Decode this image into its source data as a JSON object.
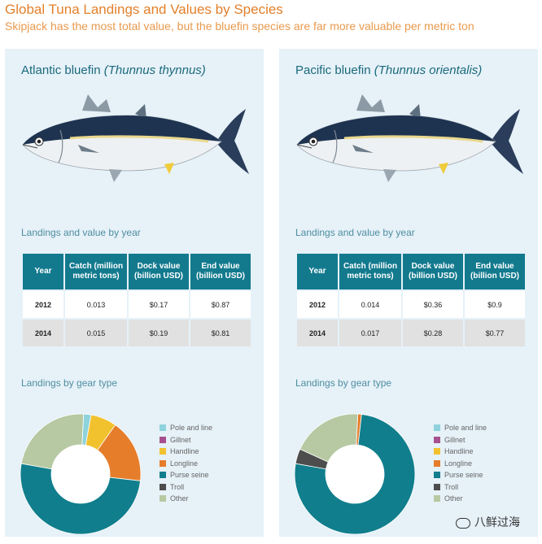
{
  "title": "Global Tuna Landings and Values by Species",
  "subtitle": "Skipjack has the most total value, but the bluefin species are far more valuable per metric ton",
  "section_landings_value": "Landings and value by year",
  "section_gear": "Landings by gear type",
  "panels": [
    {
      "species_common": "Atlantic bluefin ",
      "species_latin": "(Thunnus thynnus)",
      "table": {
        "headers": [
          "Year",
          "Catch (million metric tons)",
          "Dock value (billion USD)",
          "End value (billion USD)"
        ],
        "rows": [
          {
            "year": "2012",
            "catch": "0.013",
            "dock": "$0.17",
            "end": "$0.87"
          },
          {
            "year": "2014",
            "catch": "0.015",
            "dock": "$0.19",
            "end": "$0.81"
          }
        ]
      }
    },
    {
      "species_common": "Pacific bluefin ",
      "species_latin": "(Thunnus orientalis)",
      "table": {
        "headers": [
          "Year",
          "Catch (million metric tons)",
          "Dock value (billion USD)",
          "End value (billion USD)"
        ],
        "rows": [
          {
            "year": "2012",
            "catch": "0.014",
            "dock": "$0.36",
            "end": "$0.9"
          },
          {
            "year": "2014",
            "catch": "0.017",
            "dock": "$0.28",
            "end": "$0.77"
          }
        ]
      }
    }
  ],
  "legend": [
    {
      "label": "Pole and line",
      "color": "#8ed3dc"
    },
    {
      "label": "Gillnet",
      "color": "#a8508f"
    },
    {
      "label": "Handline",
      "color": "#f2c12e"
    },
    {
      "label": "Longline",
      "color": "#e57d2b"
    },
    {
      "label": "Purse seine",
      "color": "#107e8c"
    },
    {
      "label": "Troll",
      "color": "#4d4d4d"
    },
    {
      "label": "Other",
      "color": "#b6c9a2"
    }
  ],
  "chart_data": [
    {
      "type": "pie",
      "title": "Atlantic bluefin",
      "categories": [
        "Pole and line",
        "Gillnet",
        "Handline",
        "Longline",
        "Purse seine",
        "Troll",
        "Other"
      ],
      "values": [
        2,
        0,
        7,
        17,
        51,
        0,
        23
      ]
    },
    {
      "type": "pie",
      "title": "Pacific bluefin",
      "categories": [
        "Pole and line",
        "Gillnet",
        "Handline",
        "Longline",
        "Purse seine",
        "Troll",
        "Other"
      ],
      "values": [
        0,
        0,
        0,
        1,
        76,
        4,
        19
      ]
    }
  ],
  "watermark": "八鲜过海"
}
